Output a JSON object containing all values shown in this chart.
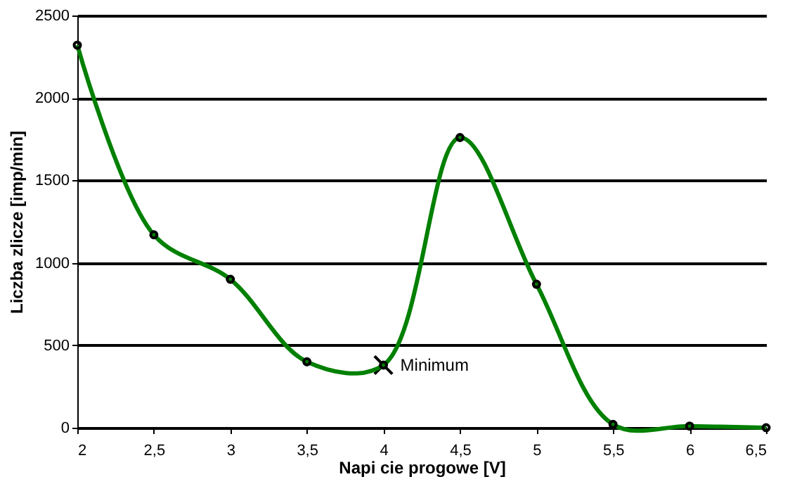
{
  "chart_data": {
    "type": "line",
    "xlabel": "Napi  cie progowe [V]",
    "ylabel": "Liczba zlicze  [imp/min]",
    "x": [
      2,
      2.5,
      3,
      3.5,
      4,
      4.5,
      5,
      5.5,
      6,
      6.5
    ],
    "series": [
      {
        "type": "scatter",
        "color": "#000000",
        "marker": "cross",
        "x": [
          4
        ],
        "values": [
          380
        ]
      },
      {
        "color": "#008000",
        "marker": "circle",
        "values": [
          2320,
          1170,
          900,
          400,
          380,
          1760,
          870,
          20,
          10,
          0
        ]
      }
    ],
    "annotations": [
      {
        "text": "Minimum",
        "x": 4,
        "y": 380
      }
    ],
    "xlim": [
      2,
      6.5
    ],
    "xticks": [
      2,
      {
        "value": 2.5,
        "label": "2,5"
      },
      3,
      {
        "value": 3.5,
        "label": "3,5"
      },
      4,
      {
        "value": 4.5,
        "label": "4,5"
      },
      5,
      {
        "value": 5.5,
        "label": "5,5"
      },
      6,
      {
        "value": 6.5,
        "label": "6,5"
      }
    ],
    "ylim": [
      0,
      2500
    ],
    "yticks": [
      0,
      500,
      1000,
      1500,
      2000,
      2500
    ],
    "grid": "y",
    "line_style": "solid"
  }
}
